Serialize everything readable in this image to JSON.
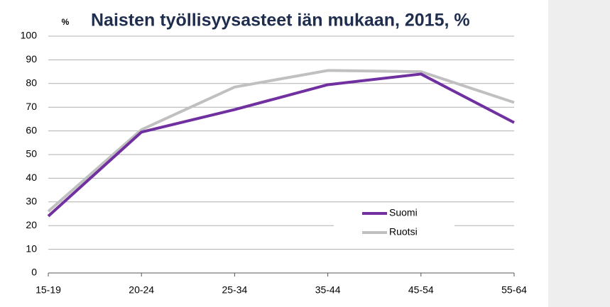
{
  "chart_data": {
    "type": "line",
    "title": "Naisten työllisyysasteet iän mukaan, 2015, %",
    "y_label": "%",
    "categories": [
      "15-19",
      "20-24",
      "25-34",
      "35-44",
      "45-54",
      "55-64"
    ],
    "series": [
      {
        "name": "Suomi",
        "color": "#7030a0",
        "values": [
          24,
          59.5,
          69,
          79.5,
          84,
          63.5
        ]
      },
      {
        "name": "Ruotsi",
        "color": "#c0c0c0",
        "values": [
          26,
          60.5,
          78.5,
          85.5,
          85,
          72
        ]
      }
    ],
    "ylim": [
      0,
      100
    ],
    "yticks": [
      0,
      10,
      20,
      30,
      40,
      50,
      60,
      70,
      80,
      90,
      100
    ],
    "grid": true
  }
}
